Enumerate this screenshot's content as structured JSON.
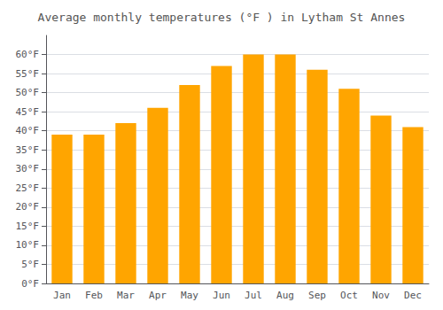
{
  "chart_data": {
    "type": "bar",
    "title": "Average monthly temperatures (°F ) in Lytham St Annes",
    "categories": [
      "Jan",
      "Feb",
      "Mar",
      "Apr",
      "May",
      "Jun",
      "Jul",
      "Aug",
      "Sep",
      "Oct",
      "Nov",
      "Dec"
    ],
    "values": [
      39,
      39,
      42,
      46,
      52,
      57,
      60,
      60,
      56,
      51,
      44,
      41
    ],
    "color": "#FFA500",
    "ylim": [
      0,
      65
    ],
    "yticks": [
      {
        "value": 0,
        "label": "0°F"
      },
      {
        "value": 5,
        "label": "5°F"
      },
      {
        "value": 10,
        "label": "10°F"
      },
      {
        "value": 15,
        "label": "15°F"
      },
      {
        "value": 20,
        "label": "20°F"
      },
      {
        "value": 25,
        "label": "25°F"
      },
      {
        "value": 30,
        "label": "30°F"
      },
      {
        "value": 35,
        "label": "35°F"
      },
      {
        "value": 40,
        "label": "40°F"
      },
      {
        "value": 45,
        "label": "45°F"
      },
      {
        "value": 50,
        "label": "50°F"
      },
      {
        "value": 55,
        "label": "55°F"
      },
      {
        "value": 60,
        "label": "60°F"
      }
    ],
    "grid": true
  }
}
